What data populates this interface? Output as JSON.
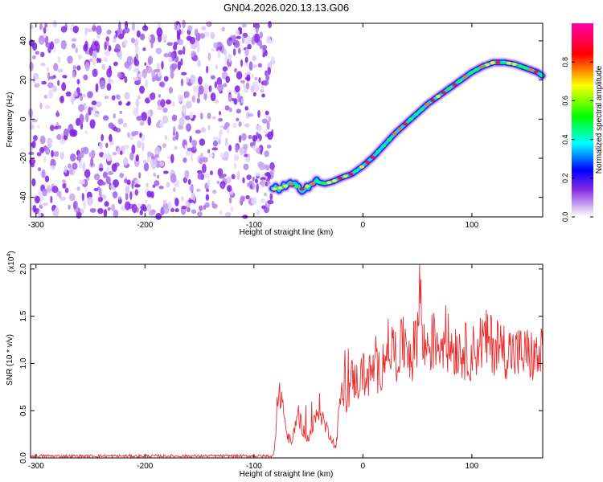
{
  "figure_title": "GN04.2026.020.13.13.G06",
  "chart_data": [
    {
      "type": "heatmap",
      "xlabel": "Height of straight line (km)",
      "ylabel": "Frequency (Hz)",
      "xlim": [
        -305,
        165
      ],
      "ylim": [
        -50,
        49
      ],
      "x_ticks": [
        -300,
        -200,
        -100,
        0,
        100
      ],
      "y_ticks": [
        -40,
        -20,
        0,
        20,
        40
      ],
      "noise_region_x": [
        -305,
        -82
      ],
      "ridge": {
        "x": [
          -83,
          -75,
          -65,
          -57,
          -50,
          -42,
          -35,
          -28,
          -20,
          -10,
          0,
          10,
          20,
          30,
          40,
          50,
          60,
          70,
          80,
          90,
          100,
          110,
          120,
          130,
          140,
          150,
          160,
          165
        ],
        "y": [
          -36,
          -35,
          -33,
          -36,
          -34,
          -32,
          -33,
          -32,
          -30,
          -28,
          -24,
          -19,
          -13,
          -7,
          -2,
          3,
          8,
          12,
          16,
          20,
          24,
          27,
          29,
          29,
          28,
          26,
          24,
          22
        ]
      },
      "colorbar": {
        "label": "Normalized spectral amplitude",
        "range": [
          0,
          1
        ],
        "ticks": [
          "0.0",
          "0.2",
          "0.4",
          "0.6",
          "0.8"
        ],
        "colors": [
          "#ffffff",
          "#8a2be2",
          "#0000ff",
          "#00ffff",
          "#00ff00",
          "#ffff00",
          "#ff0000",
          "#ff00ff"
        ]
      }
    },
    {
      "type": "line",
      "xlabel": "Height of straight line (km)",
      "ylabel": "SNR (10 * v/v)",
      "y_multiplier": "(x10",
      "y_multiplier_exp": "4",
      "y_multiplier_close": ")",
      "xlim": [
        -305,
        165
      ],
      "ylim": [
        0,
        2.05
      ],
      "x_ticks": [
        -300,
        -200,
        -100,
        0,
        100
      ],
      "y_tick_values": [
        0.0,
        0.5,
        1.0,
        1.5,
        2.0
      ],
      "y_tick_labels": [
        "0.0",
        "0.5",
        "1.0",
        "1.5",
        "2.0"
      ],
      "series": [
        {
          "color": "#e83030",
          "x": [
            -305,
            -82,
            -78,
            -75,
            -70,
            -65,
            -60,
            -55,
            -50,
            -45,
            -40,
            -35,
            -30,
            -25,
            -20,
            -15,
            -10,
            -5,
            0,
            5,
            10,
            15,
            20,
            25,
            30,
            35,
            40,
            45,
            50,
            52,
            55,
            60,
            70,
            80,
            90,
            100,
            110,
            120,
            130,
            140,
            150,
            160,
            165
          ],
          "y": [
            0.02,
            0.02,
            0.55,
            0.7,
            0.25,
            0.15,
            0.5,
            0.3,
            0.2,
            0.35,
            0.55,
            0.35,
            0.25,
            0.1,
            0.7,
            0.6,
            0.85,
            0.8,
            0.9,
            0.85,
            0.95,
            0.9,
            1.1,
            1.2,
            1.1,
            1.15,
            1.25,
            1.05,
            1.35,
            2.0,
            1.15,
            1.2,
            1.25,
            1.2,
            1.15,
            1.1,
            1.25,
            1.2,
            1.15,
            1.1,
            1.1,
            1.05,
            1.1
          ]
        }
      ]
    }
  ]
}
